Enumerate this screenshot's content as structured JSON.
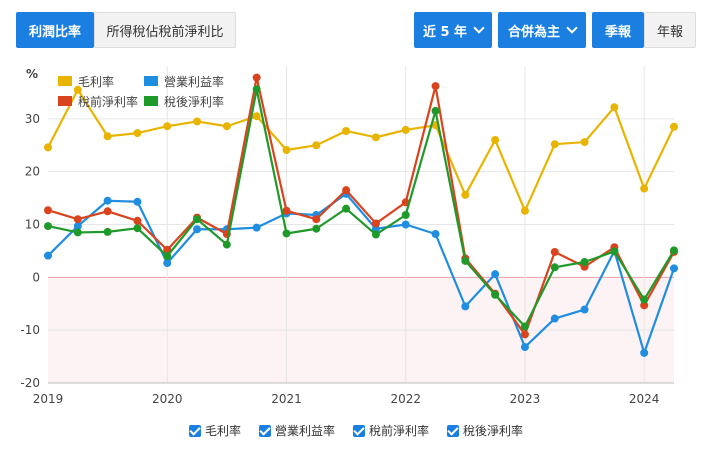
{
  "tabs": {
    "left_active": "利潤比率",
    "left_other": "所得稅佔稅前淨利比"
  },
  "controls": {
    "period": "近 5 年",
    "scope": "合併為主",
    "quarterly": "季報",
    "annual": "年報"
  },
  "colors": {
    "accent": "#1a7fe0",
    "gross": "#e8b400",
    "operating": "#1f8de0",
    "pretax": "#d9431e",
    "net": "#1f9a2a"
  },
  "chart_data": {
    "type": "line",
    "yunit": "%",
    "ylim": [
      -20,
      40
    ],
    "yticks": [
      -20,
      -10,
      0,
      10,
      20,
      30
    ],
    "xticks": [
      "2019",
      "2020",
      "2021",
      "2022",
      "2023",
      "2024"
    ],
    "x": [
      "2019Q1",
      "2019Q2",
      "2019Q3",
      "2019Q4",
      "2020Q1",
      "2020Q2",
      "2020Q3",
      "2020Q4",
      "2021Q1",
      "2021Q2",
      "2021Q3",
      "2021Q4",
      "2022Q1",
      "2022Q2",
      "2022Q3",
      "2022Q4",
      "2023Q1",
      "2023Q2",
      "2023Q3",
      "2023Q4",
      "2024Q1",
      "2024Q2"
    ],
    "legend_position": "top-left",
    "grid": true,
    "series": [
      {
        "name": "毛利率",
        "color": "#e8b400",
        "values": [
          24.6,
          35.5,
          26.7,
          27.3,
          28.6,
          29.5,
          28.6,
          30.5,
          24.1,
          25.0,
          27.7,
          26.5,
          27.9,
          28.8,
          15.6,
          26.0,
          12.6,
          25.2,
          25.6,
          32.2,
          16.8,
          28.5
        ]
      },
      {
        "name": "營業利益率",
        "color": "#1f8de0",
        "values": [
          4.1,
          9.7,
          14.5,
          14.3,
          2.7,
          9.1,
          9.1,
          9.4,
          12.1,
          11.8,
          15.8,
          9.2,
          10.0,
          8.2,
          -5.5,
          0.6,
          -13.2,
          -7.8,
          -6.1,
          5.0,
          -14.3,
          1.7
        ]
      },
      {
        "name": "稅前淨利率",
        "color": "#d9431e",
        "values": [
          12.7,
          11.0,
          12.5,
          10.7,
          5.2,
          11.3,
          8.2,
          37.8,
          12.6,
          11.0,
          16.5,
          10.2,
          14.2,
          36.2,
          3.6,
          -3.1,
          -10.8,
          4.8,
          2.0,
          5.7,
          -5.3,
          4.8
        ]
      },
      {
        "name": "稅後淨利率",
        "color": "#1f9a2a",
        "values": [
          9.7,
          8.5,
          8.6,
          9.3,
          4.0,
          11.0,
          6.2,
          35.6,
          8.3,
          9.2,
          13.0,
          8.1,
          11.8,
          31.5,
          3.1,
          -3.3,
          -9.3,
          1.9,
          2.9,
          4.9,
          -4.2,
          5.1
        ]
      }
    ]
  }
}
